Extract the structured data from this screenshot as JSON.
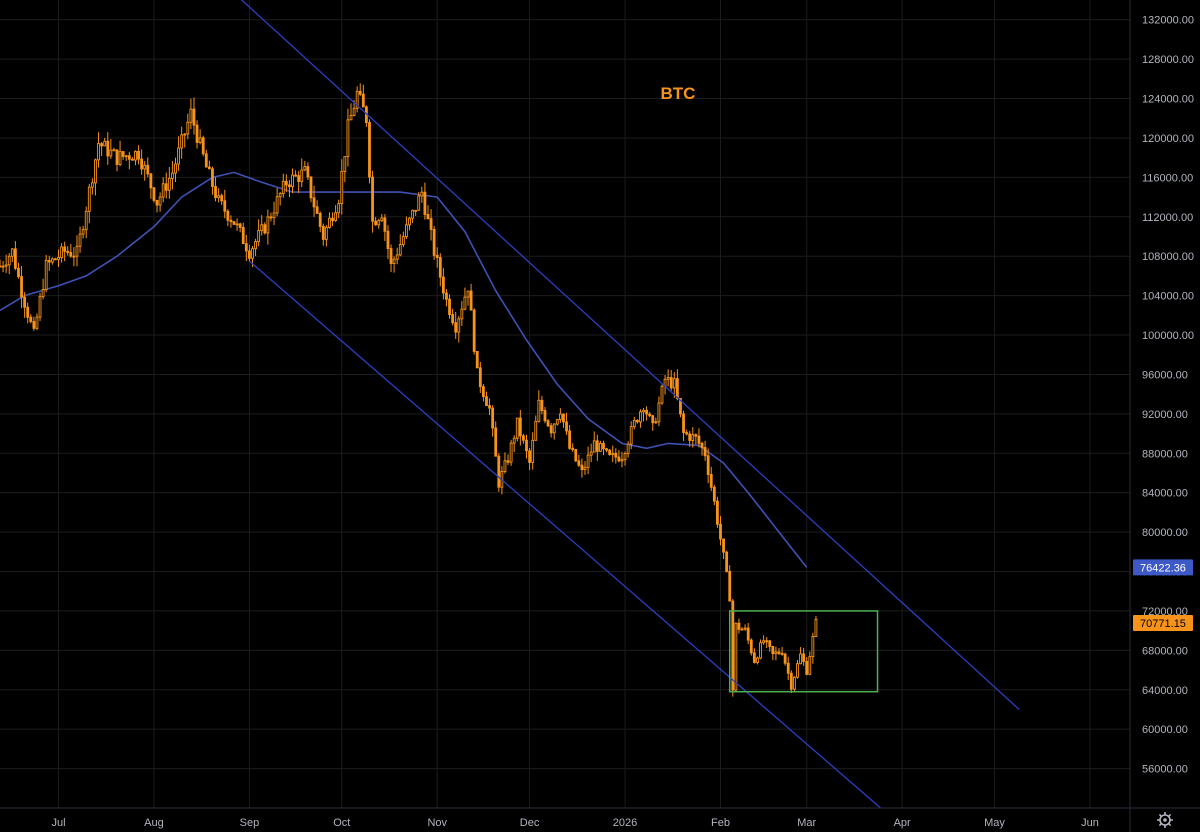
{
  "chart_data": {
    "type": "candlestick",
    "title": "BTC",
    "symbol_label": "BTC",
    "ylim": [
      52000,
      134000
    ],
    "y_ticks": [
      56000,
      60000,
      64000,
      68000,
      72000,
      76000,
      80000,
      84000,
      88000,
      92000,
      96000,
      100000,
      104000,
      108000,
      112000,
      116000,
      120000,
      124000,
      128000,
      132000
    ],
    "x_ticks": [
      {
        "date": "2025-07-01",
        "label": "Jul"
      },
      {
        "date": "2025-08-01",
        "label": "Aug"
      },
      {
        "date": "2025-09-01",
        "label": "Sep"
      },
      {
        "date": "2025-10-01",
        "label": "Oct"
      },
      {
        "date": "2025-11-01",
        "label": "Nov"
      },
      {
        "date": "2025-12-01",
        "label": "Dec"
      },
      {
        "date": "2026-01-01",
        "label": "2026"
      },
      {
        "date": "2026-02-01",
        "label": "Feb"
      },
      {
        "date": "2026-03-01",
        "label": "Mar"
      },
      {
        "date": "2026-04-01",
        "label": "Apr"
      },
      {
        "date": "2026-05-01",
        "label": "May"
      },
      {
        "date": "2026-06-01",
        "label": "Jun"
      }
    ],
    "xlim": [
      "2025-06-12",
      "2026-06-14"
    ],
    "grid": true,
    "price_keypoints": [
      [
        "2025-06-12",
        107000
      ],
      [
        "2025-06-16",
        108500
      ],
      [
        "2025-06-19",
        104500
      ],
      [
        "2025-06-23",
        100000
      ],
      [
        "2025-06-27",
        107000
      ],
      [
        "2025-07-03",
        108500
      ],
      [
        "2025-07-07",
        108300
      ],
      [
        "2025-07-10",
        113000
      ],
      [
        "2025-07-14",
        119500
      ],
      [
        "2025-07-20",
        118000
      ],
      [
        "2025-07-27",
        118500
      ],
      [
        "2025-08-02",
        113500
      ],
      [
        "2025-08-07",
        116500
      ],
      [
        "2025-08-13",
        122500
      ],
      [
        "2025-08-18",
        117000
      ],
      [
        "2025-08-22",
        113500
      ],
      [
        "2025-08-27",
        111500
      ],
      [
        "2025-09-01",
        108500
      ],
      [
        "2025-09-06",
        111000
      ],
      [
        "2025-09-13",
        115500
      ],
      [
        "2025-09-19",
        116500
      ],
      [
        "2025-09-25",
        110000
      ],
      [
        "2025-09-30",
        114000
      ],
      [
        "2025-10-03",
        121000
      ],
      [
        "2025-10-06",
        124500
      ],
      [
        "2025-10-09",
        122000
      ],
      [
        "2025-10-11",
        111500
      ],
      [
        "2025-10-14",
        112500
      ],
      [
        "2025-10-17",
        107000
      ],
      [
        "2025-10-21",
        110000
      ],
      [
        "2025-10-27",
        114500
      ],
      [
        "2025-10-31",
        108500
      ],
      [
        "2025-11-04",
        103500
      ],
      [
        "2025-11-07",
        101000
      ],
      [
        "2025-11-11",
        105000
      ],
      [
        "2025-11-14",
        96000
      ],
      [
        "2025-11-18",
        92500
      ],
      [
        "2025-11-21",
        85000
      ],
      [
        "2025-11-24",
        87500
      ],
      [
        "2025-11-27",
        91000
      ],
      [
        "2025-12-01",
        87000
      ],
      [
        "2025-12-04",
        93000
      ],
      [
        "2025-12-08",
        90500
      ],
      [
        "2025-12-11",
        92500
      ],
      [
        "2025-12-14",
        88500
      ],
      [
        "2025-12-18",
        86000
      ],
      [
        "2025-12-22",
        89000
      ],
      [
        "2025-12-27",
        87500
      ],
      [
        "2025-12-31",
        87800
      ],
      [
        "2026-01-04",
        91000
      ],
      [
        "2026-01-07",
        93000
      ],
      [
        "2026-01-10",
        90500
      ],
      [
        "2026-01-14",
        95500
      ],
      [
        "2026-01-17",
        95000
      ],
      [
        "2026-01-20",
        90000
      ],
      [
        "2026-01-24",
        89500
      ],
      [
        "2026-01-27",
        88000
      ],
      [
        "2026-01-30",
        83000
      ],
      [
        "2026-02-02",
        77500
      ],
      [
        "2026-02-04",
        73500
      ],
      [
        "2026-02-05",
        64000
      ],
      [
        "2026-02-06",
        70500
      ],
      [
        "2026-02-09",
        70000
      ],
      [
        "2026-02-12",
        67000
      ],
      [
        "2026-02-15",
        69000
      ],
      [
        "2026-02-18",
        67500
      ],
      [
        "2026-02-21",
        68000
      ],
      [
        "2026-02-24",
        64500
      ],
      [
        "2026-02-27",
        67500
      ],
      [
        "2026-03-01",
        66000
      ],
      [
        "2026-03-04",
        70771
      ]
    ],
    "moving_average": [
      [
        "2025-06-12",
        102500
      ],
      [
        "2025-06-20",
        104000
      ],
      [
        "2025-07-01",
        105000
      ],
      [
        "2025-07-10",
        106000
      ],
      [
        "2025-07-20",
        108000
      ],
      [
        "2025-08-01",
        111000
      ],
      [
        "2025-08-10",
        114000
      ],
      [
        "2025-08-20",
        116000
      ],
      [
        "2025-08-27",
        116500
      ],
      [
        "2025-09-05",
        115500
      ],
      [
        "2025-09-15",
        114500
      ],
      [
        "2025-09-25",
        114500
      ],
      [
        "2025-10-05",
        114500
      ],
      [
        "2025-10-20",
        114500
      ],
      [
        "2025-11-01",
        114000
      ],
      [
        "2025-11-10",
        110500
      ],
      [
        "2025-11-20",
        104500
      ],
      [
        "2025-11-30",
        99500
      ],
      [
        "2025-12-10",
        95000
      ],
      [
        "2025-12-20",
        91500
      ],
      [
        "2025-12-31",
        89000
      ],
      [
        "2026-01-08",
        88500
      ],
      [
        "2026-01-15",
        89000
      ],
      [
        "2026-01-25",
        88800
      ],
      [
        "2026-02-02",
        87000
      ],
      [
        "2026-02-10",
        84000
      ],
      [
        "2026-02-20",
        80000
      ],
      [
        "2026-03-01",
        76422
      ]
    ],
    "channel_upper": [
      [
        "2025-08-26",
        135000
      ],
      [
        "2026-05-09",
        62000
      ]
    ],
    "channel_lower": [
      [
        "2025-09-01",
        107500
      ],
      [
        "2026-03-25",
        52000
      ]
    ],
    "range_box": {
      "x_start": "2026-02-04",
      "x_end": "2026-03-24",
      "y_low": 63800,
      "y_high": 72000
    },
    "last_price": {
      "label": "70771.15",
      "value": 70771.15
    },
    "ma_value": {
      "label": "76422.36",
      "value": 76422.36
    },
    "colors": {
      "background": "#000000",
      "grid": "#1c1c1c",
      "candle": "#f7931a",
      "moving_average": "#3f51b5",
      "channel": "#2b3fc2",
      "range_box": "#4caf50",
      "ma_badge": "#3d59c7",
      "price_badge": "#f7931a",
      "axis_text": "#b2b5be"
    }
  },
  "ui": {
    "settings_icon": "gear-icon"
  }
}
